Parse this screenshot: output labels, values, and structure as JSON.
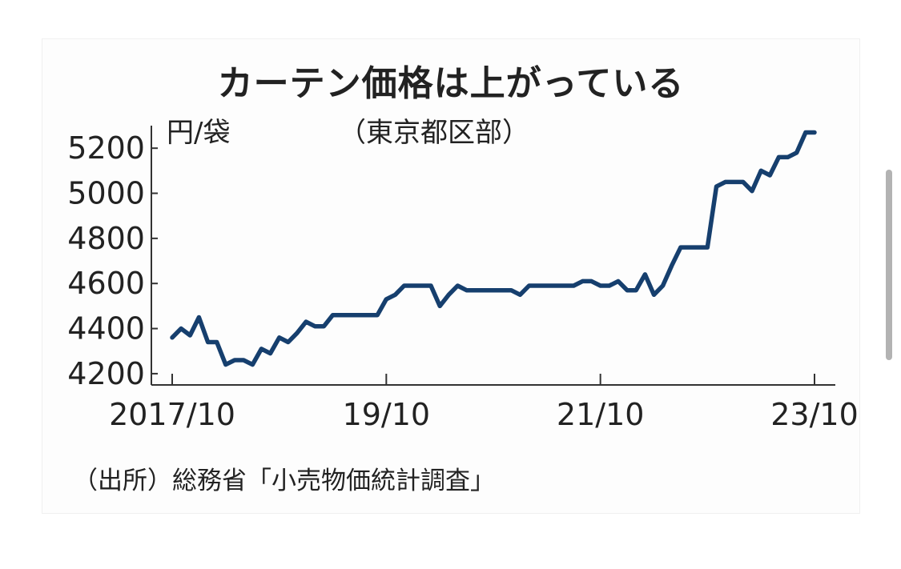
{
  "chart_data": {
    "type": "line",
    "title": "カーテン価格は上がっている",
    "ylabel": "円/袋",
    "region_note": "（東京都区部）",
    "source": "（出所）総務省「小売物価統計調査」",
    "xlim": [
      "2017-10",
      "2023-10"
    ],
    "ylim": [
      4150,
      5300
    ],
    "x_ticks": [
      {
        "label": "2017/10",
        "x": "2017-10"
      },
      {
        "label": "19/10",
        "x": "2019-10"
      },
      {
        "label": "21/10",
        "x": "2021-10"
      },
      {
        "label": "23/10",
        "x": "2023-10"
      }
    ],
    "y_ticks": [
      4200,
      4400,
      4600,
      4800,
      5000,
      5200
    ],
    "grid": false,
    "line_color": "#163f6e",
    "series": [
      {
        "x": [
          "2017-10",
          "2017-11",
          "2017-12",
          "2018-01",
          "2018-02",
          "2018-03",
          "2018-04",
          "2018-05",
          "2018-06",
          "2018-07",
          "2018-08",
          "2018-09",
          "2018-10",
          "2018-11",
          "2018-12",
          "2019-01",
          "2019-02",
          "2019-03",
          "2019-04",
          "2019-05",
          "2019-06",
          "2019-07",
          "2019-08",
          "2019-09",
          "2019-10",
          "2019-11",
          "2019-12",
          "2020-01",
          "2020-02",
          "2020-03",
          "2020-04",
          "2020-05",
          "2020-06",
          "2020-07",
          "2020-08",
          "2020-09",
          "2020-10",
          "2020-11",
          "2020-12",
          "2021-01",
          "2021-02",
          "2021-03",
          "2021-04",
          "2021-05",
          "2021-06",
          "2021-07",
          "2021-08",
          "2021-09",
          "2021-10",
          "2021-11",
          "2021-12",
          "2022-01",
          "2022-02",
          "2022-03",
          "2022-04",
          "2022-05",
          "2022-06",
          "2022-07",
          "2022-08",
          "2022-09",
          "2022-10",
          "2022-11",
          "2022-12",
          "2023-01",
          "2023-02",
          "2023-03",
          "2023-04",
          "2023-05",
          "2023-06",
          "2023-07",
          "2023-08",
          "2023-09",
          "2023-10"
        ],
        "values": [
          4360,
          4400,
          4370,
          4450,
          4340,
          4340,
          4240,
          4260,
          4260,
          4240,
          4310,
          4290,
          4360,
          4340,
          4380,
          4430,
          4410,
          4410,
          4460,
          4460,
          4460,
          4460,
          4460,
          4460,
          4530,
          4550,
          4590,
          4590,
          4590,
          4590,
          4500,
          4550,
          4590,
          4570,
          4570,
          4570,
          4570,
          4570,
          4570,
          4550,
          4590,
          4590,
          4590,
          4590,
          4590,
          4590,
          4610,
          4610,
          4590,
          4590,
          4610,
          4570,
          4570,
          4640,
          4550,
          4590,
          4680,
          4760,
          4760,
          4760,
          4760,
          5030,
          5050,
          5050,
          5050,
          5010,
          5100,
          5080,
          5160,
          5160,
          5180,
          5270,
          5270
        ]
      }
    ]
  }
}
